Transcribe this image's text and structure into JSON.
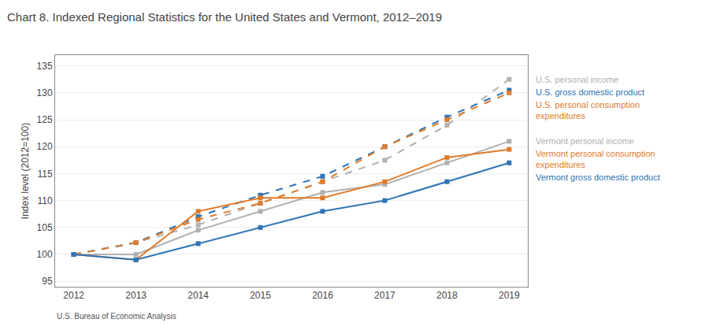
{
  "chart_data": {
    "type": "line",
    "title": "Chart 8. Indexed Regional Statistics for the United States and Vermont, 2012–2019",
    "y_label": "Index level (2012=100)",
    "footnote": "U.S. Bureau of Economic Analysis",
    "x": [
      2012,
      2013,
      2014,
      2015,
      2016,
      2017,
      2018,
      2019
    ],
    "series": [
      {
        "name": "U.S. personal income",
        "color": "#b0b0b0",
        "line_style": "dashed",
        "marker": "square",
        "values": [
          100,
          102.2,
          105.5,
          109.5,
          113.5,
          117.5,
          124.0,
          132.5
        ]
      },
      {
        "name": "U.S. gross domestic product",
        "color": "#2E74B5",
        "line_style": "dashed",
        "marker": "square",
        "values": [
          100,
          102.2,
          107.0,
          111.0,
          114.5,
          120.0,
          125.5,
          130.5
        ]
      },
      {
        "name": "U.S. personal consumption\nexpenditures",
        "color": "#E07B2A",
        "line_style": "dashed",
        "marker": "square",
        "values": [
          100,
          102.2,
          106.5,
          109.5,
          113.5,
          120.0,
          125.0,
          130.0
        ]
      },
      {
        "name": "Vermont personal income",
        "color": "#b0b0b0",
        "line_style": "solid",
        "marker": "square",
        "values": [
          100,
          100.0,
          104.5,
          108.0,
          111.5,
          113.0,
          117.0,
          121.0
        ]
      },
      {
        "name": "Vermont personal consumption\nexpenditures",
        "color": "#E07B2A",
        "line_style": "solid",
        "marker": "square",
        "values": [
          100,
          99.0,
          108.0,
          110.5,
          110.5,
          113.5,
          118.0,
          119.5
        ]
      },
      {
        "name": "Vermont gross domestic product",
        "color": "#2E74B5",
        "line_style": "solid",
        "marker": "square",
        "values": [
          100,
          99.0,
          102.0,
          105.0,
          108.0,
          110.0,
          113.5,
          117.0
        ]
      }
    ],
    "xlim": [
      2011.7,
      2019.3
    ],
    "xticks": [
      2012,
      2013,
      2014,
      2015,
      2016,
      2017,
      2018,
      2019
    ],
    "ylim": [
      94,
      137
    ],
    "yticks": [
      95,
      100,
      105,
      110,
      115,
      120,
      125,
      130,
      135
    ],
    "grid": true
  }
}
